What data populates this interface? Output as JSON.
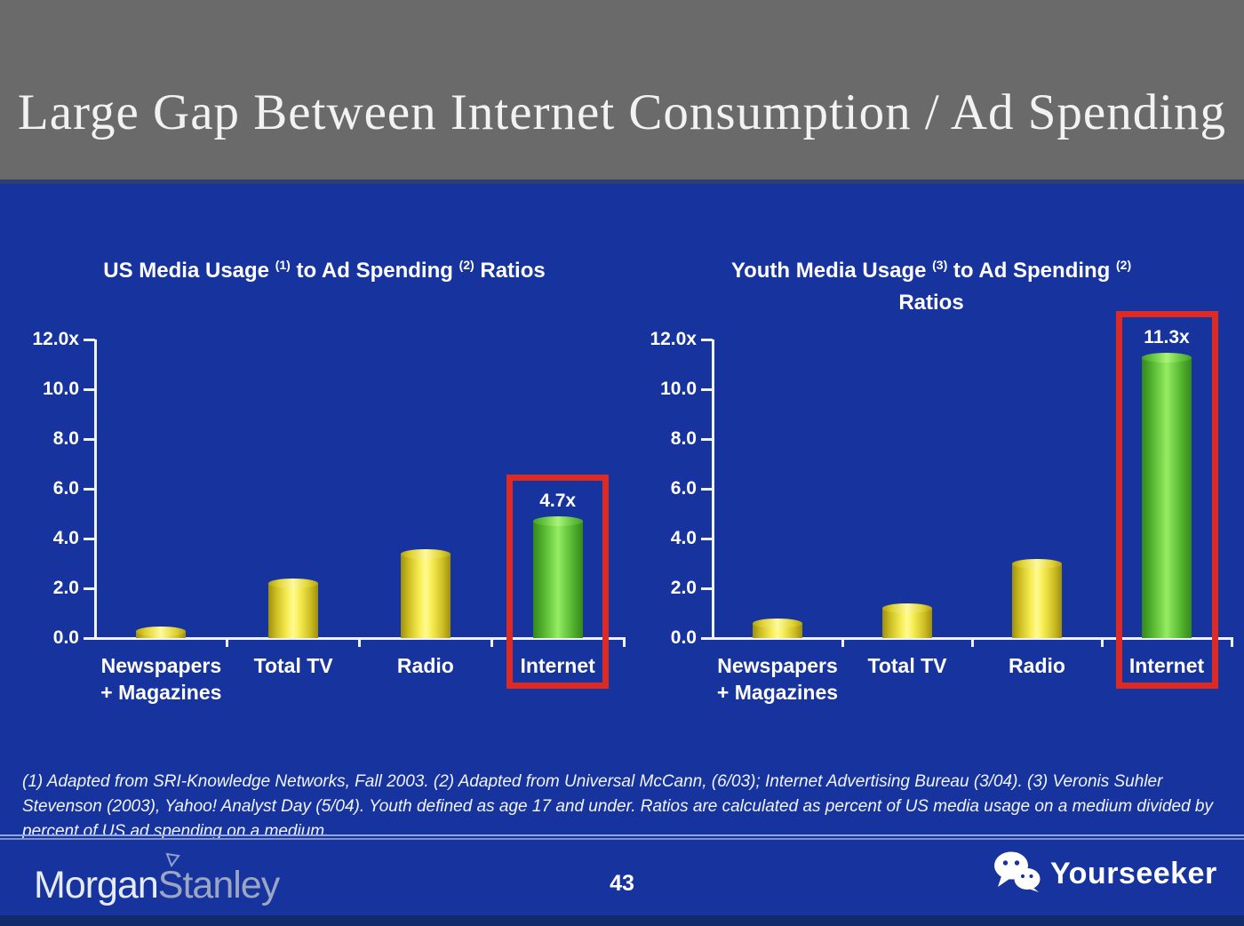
{
  "header": {
    "title": "Large Gap Between Internet Consumption / Ad Spending"
  },
  "chart_data": [
    {
      "type": "bar",
      "title_lines": [
        [
          {
            "t": "US Media Usage "
          },
          {
            "sup": "(1)"
          },
          {
            "t": " to Ad Spending "
          },
          {
            "sup": "(2)"
          },
          {
            "t": " Ratios"
          }
        ]
      ],
      "categories": [
        [
          "Newspapers",
          "+ Magazines"
        ],
        [
          "Total TV"
        ],
        [
          "Radio"
        ],
        [
          "Internet"
        ]
      ],
      "values": [
        0.3,
        2.2,
        3.4,
        4.7
      ],
      "bar_colors": [
        "yellow",
        "yellow",
        "yellow",
        "green"
      ],
      "value_labels": [
        null,
        null,
        null,
        "4.7x"
      ],
      "highlight_index": 3,
      "yticks": [
        {
          "v": 0,
          "label": "0.0"
        },
        {
          "v": 2,
          "label": "2.0"
        },
        {
          "v": 4,
          "label": "4.0"
        },
        {
          "v": 6,
          "label": "6.0"
        },
        {
          "v": 8,
          "label": "8.0"
        },
        {
          "v": 10,
          "label": "10.0"
        },
        {
          "v": 12,
          "label": "12.0x"
        }
      ],
      "ylim": [
        0,
        12
      ],
      "grid": false,
      "legend": null
    },
    {
      "type": "bar",
      "title_lines": [
        [
          {
            "t": "Youth Media Usage "
          },
          {
            "sup": "(3)"
          },
          {
            "t": " to Ad Spending "
          },
          {
            "sup": "(2)"
          }
        ],
        [
          {
            "t": "Ratios"
          }
        ]
      ],
      "categories": [
        [
          "Newspapers",
          "+ Magazines"
        ],
        [
          "Total TV"
        ],
        [
          "Radio"
        ],
        [
          "Internet"
        ]
      ],
      "values": [
        0.6,
        1.2,
        3.0,
        11.3
      ],
      "bar_colors": [
        "yellow",
        "yellow",
        "yellow",
        "green"
      ],
      "value_labels": [
        null,
        null,
        null,
        "11.3x"
      ],
      "highlight_index": 3,
      "yticks": [
        {
          "v": 0,
          "label": "0.0"
        },
        {
          "v": 2,
          "label": "2.0"
        },
        {
          "v": 4,
          "label": "4.0"
        },
        {
          "v": 6,
          "label": "6.0"
        },
        {
          "v": 8,
          "label": "8.0"
        },
        {
          "v": 10,
          "label": "10.0"
        },
        {
          "v": 12,
          "label": "12.0x"
        }
      ],
      "ylim": [
        0,
        12
      ],
      "grid": false,
      "legend": null
    }
  ],
  "footnote": "(1) Adapted from SRI-Knowledge Networks, Fall 2003.  (2) Adapted from Universal McCann, (6/03); Internet Advertising Bureau (3/04). (3) Veronis Suhler Stevenson (2003), Yahoo! Analyst Day (5/04).  Youth defined as age 17 and under.  Ratios are calculated as percent of US media usage on a medium divided by percent of US ad spending on a medium.",
  "footer": {
    "brand_left_1": "Morgan",
    "brand_left_2": "Stanley",
    "page_number": "43",
    "brand_right": "Yourseeker"
  },
  "colors": {
    "background_blue": "#17349E",
    "header_gray": "#6A6A6A",
    "bar_yellow": "#F2E135",
    "bar_green": "#5CC43C",
    "highlight_red": "#DB2B24",
    "axis_white": "#FFFFFF",
    "bottom_strip_navy": "#112B6B"
  }
}
